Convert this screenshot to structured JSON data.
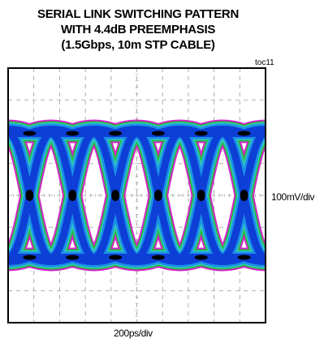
{
  "title": {
    "line1": "SERIAL LINK SWITCHING PATTERN",
    "line2": "WITH 4.4dB PREEMPHASIS",
    "line3": "(1.5Gbps, 10m STP CABLE)"
  },
  "figure_id": "toc11",
  "colors": {
    "background": "#ffffff",
    "frame": "#000000",
    "grid": "#9a9a9a",
    "trace_core": "#000000",
    "trace_dense": "#0d3fd6",
    "trace_mid": "#1a8fe8",
    "trace_light": "#35c4c4",
    "trace_edge_green": "#1ec23a",
    "trace_edge_magenta": "#d424c8"
  },
  "chart_data": {
    "type": "line",
    "description_kind": "eye-diagram",
    "xlabel": "200ps/div",
    "ylabel": "100mV/div",
    "grid": true,
    "x_divisions": 10,
    "y_divisions": 8,
    "x_per_div_ps": 200,
    "y_per_div_mv": 100,
    "unit_interval_ps": 666.7,
    "crossing_times_ps": [
      -1667,
      -1000,
      -333,
      333,
      1000,
      1667
    ],
    "x_range_ps": [
      -2000,
      2000
    ],
    "y_range_mv": [
      -400,
      400
    ],
    "levels_mv": {
      "high_overshoot": 220,
      "high_settled": 195,
      "crossing": 0,
      "low_settled": -195,
      "low_overshoot": -220
    }
  }
}
